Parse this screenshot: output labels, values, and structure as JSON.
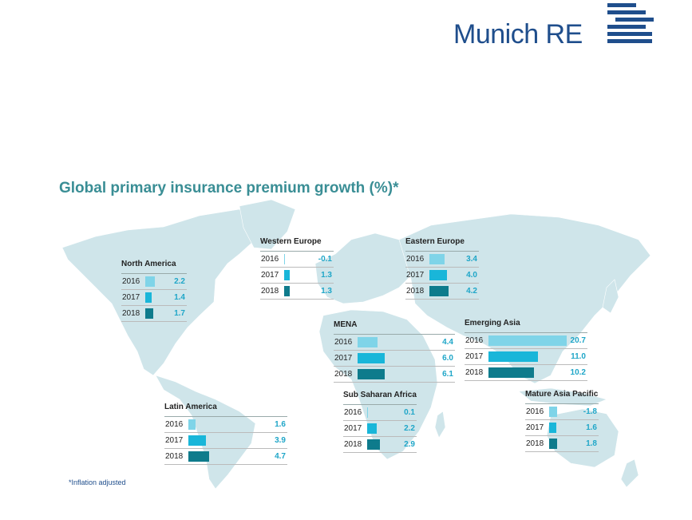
{
  "brand": {
    "name": "Munich RE"
  },
  "colors": {
    "y2016": "#7fd4e8",
    "y2017": "#19b6d9",
    "y2018": "#0e7b8c",
    "value": "#1fa6c8",
    "title": "#3a8e95",
    "land": "#cfe5ea"
  },
  "chart_data": {
    "type": "bar",
    "title": "Global primary insurance premium growth (%)*",
    "footnote": "*Inflation adjusted",
    "years": [
      "2016",
      "2017",
      "2018"
    ],
    "regions": [
      {
        "name": "North America",
        "values": [
          2.2,
          1.4,
          1.7
        ],
        "labels": [
          "2.2",
          "1.4",
          "1.7"
        ]
      },
      {
        "name": "Western Europe",
        "values": [
          -0.1,
          1.3,
          1.3
        ],
        "labels": [
          "-0.1",
          "1.3",
          "1.3"
        ]
      },
      {
        "name": "Eastern Europe",
        "values": [
          3.4,
          4.0,
          4.2
        ],
        "labels": [
          "3.4",
          "4.0",
          "4.2"
        ]
      },
      {
        "name": "MENA",
        "values": [
          4.4,
          6.0,
          6.1
        ],
        "labels": [
          "4.4",
          "6.0",
          "6.1"
        ]
      },
      {
        "name": "Emerging Asia",
        "values": [
          20.7,
          11.0,
          10.2
        ],
        "labels": [
          "20.7",
          "11.0",
          "10.2"
        ]
      },
      {
        "name": "Latin America",
        "values": [
          1.6,
          3.9,
          4.7
        ],
        "labels": [
          "1.6",
          "3.9",
          "4.7"
        ]
      },
      {
        "name": "Sub Saharan Africa",
        "values": [
          0.1,
          2.2,
          2.9
        ],
        "labels": [
          "0.1",
          "2.2",
          "2.9"
        ]
      },
      {
        "name": "Mature Asia Pacific",
        "values": [
          -1.8,
          1.6,
          1.8
        ],
        "labels": [
          "-1.8",
          "1.6",
          "1.8"
        ]
      }
    ]
  }
}
